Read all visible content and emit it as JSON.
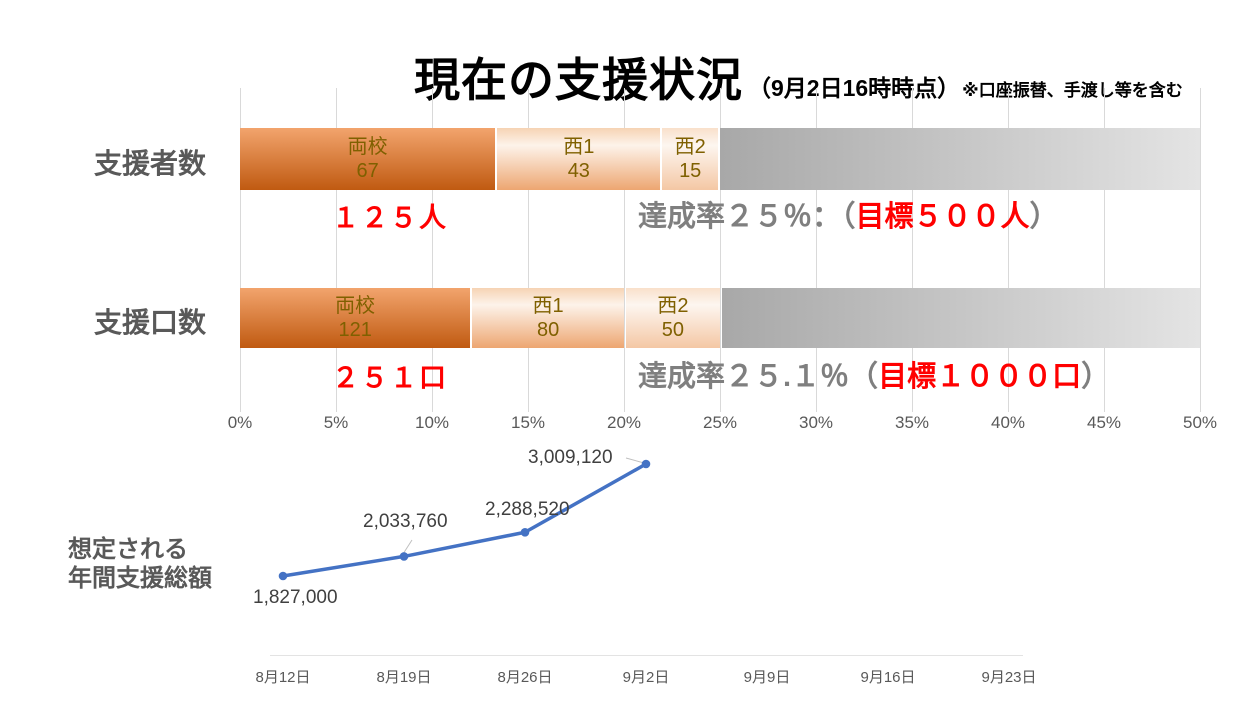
{
  "title": {
    "main": "現在の支援状況",
    "timestamp": "（9月2日16時時点）",
    "note": "※口座振替、手渡し等を含む"
  },
  "colors": {
    "title_black": "#000000",
    "row_label_gray": "#595959",
    "segment_text": "#7f6000",
    "total_red": "#ff0000",
    "rate_gray": "#7f7f7f",
    "goal_red": "#ff0000",
    "gridline": "#d9d9d9",
    "line_blue": "#4472c4",
    "value_label_gray": "#404040",
    "segment_gradients": [
      [
        "#f2a46d",
        "#c05a11"
      ],
      [
        "#f6d3b4",
        "#fdf3ea",
        "#eda671"
      ],
      [
        "#f9e0cb",
        "#fdf6f0",
        "#f4c7a4"
      ]
    ],
    "remainder_gradient": [
      "#a8a8a8",
      "#e4e4e4"
    ]
  },
  "chart_data": [
    {
      "type": "bar",
      "orientation": "horizontal-stacked",
      "axis_max_percent": 50,
      "ticks": [
        "0%",
        "5%",
        "10%",
        "15%",
        "20%",
        "25%",
        "30%",
        "35%",
        "40%",
        "45%",
        "50%"
      ],
      "rows": [
        {
          "label": "支援者数",
          "target": 500,
          "segments": [
            {
              "name": "両校",
              "value": 67
            },
            {
              "name": "西1",
              "value": 43
            },
            {
              "name": "西2",
              "value": 15
            }
          ],
          "total": 125,
          "total_label": "１２５人",
          "rate_prefix": "達成率２５％：（",
          "rate_goal": "目標５００人",
          "rate_suffix": "）"
        },
        {
          "label": "支援口数",
          "target": 1000,
          "segments": [
            {
              "name": "両校",
              "value": 121
            },
            {
              "name": "西1",
              "value": 80
            },
            {
              "name": "西2",
              "value": 50
            }
          ],
          "total": 251,
          "total_label": "２５１口",
          "rate_prefix": "達成率２５.１％（",
          "rate_goal": "目標１０００口",
          "rate_suffix": "）"
        }
      ]
    },
    {
      "type": "line",
      "title_line1": "想定される",
      "title_line2": "年間支援総額",
      "x": [
        "8月12日",
        "8月19日",
        "8月26日",
        "9月2日",
        "9月9日",
        "9月16日",
        "9月23日"
      ],
      "values": [
        1827000,
        2033760,
        2288520,
        3009120
      ],
      "labels": [
        "1,827,000",
        "2,033,760",
        "2,288,520",
        "3,009,120"
      ]
    }
  ]
}
